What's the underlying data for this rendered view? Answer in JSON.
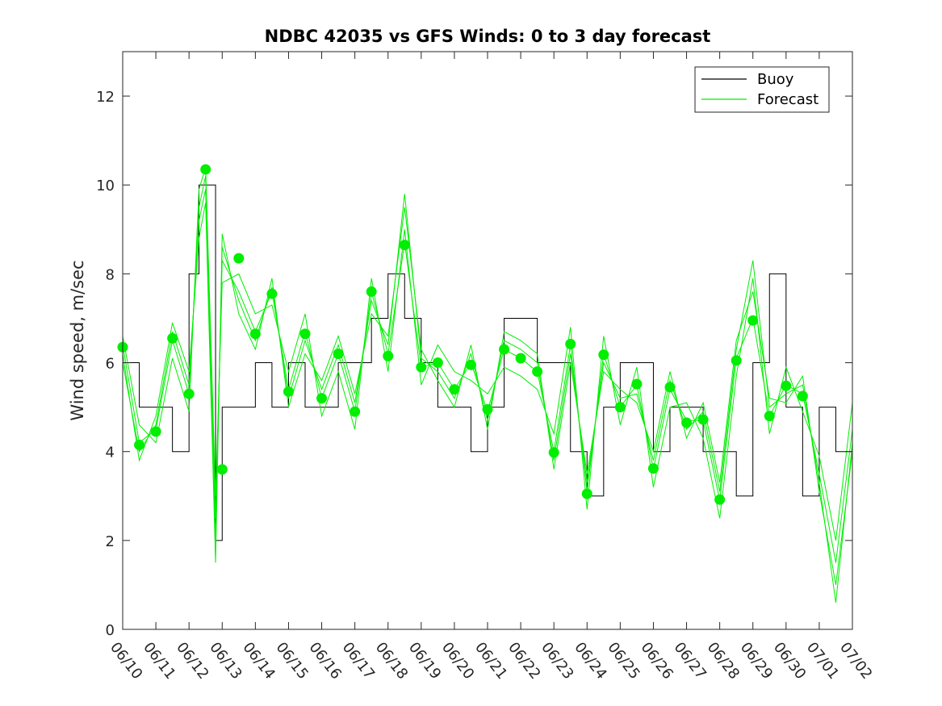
{
  "chart_data": {
    "type": "line",
    "title": "NDBC 42035 vs GFS Winds: 0 to 3 day forecast",
    "xlabel": "",
    "ylabel": "Wind speed, m/sec",
    "ylim": [
      0,
      13
    ],
    "yticks": [
      0,
      2,
      4,
      6,
      8,
      10,
      12
    ],
    "xlim": [
      0,
      22
    ],
    "xtick_labels": [
      "06/10",
      "06/11",
      "06/12",
      "06/13",
      "06/14",
      "06/15",
      "06/16",
      "06/17",
      "06/18",
      "06/19",
      "06/20",
      "06/21",
      "06/22",
      "06/23",
      "06/24",
      "06/25",
      "06/26",
      "06/27",
      "06/28",
      "06/29",
      "06/30",
      "07/01",
      "07/02"
    ],
    "grid": false,
    "legend": {
      "placement": "top-right",
      "entries": [
        "Buoy",
        "Forecast"
      ]
    },
    "colors": {
      "buoy": "#000000",
      "forecast": "#00ee00",
      "markers": "#00ee00"
    },
    "buoy": {
      "name": "Buoy",
      "x": [
        0,
        0.5,
        1,
        1.5,
        2,
        2.3,
        2.5,
        2.8,
        3,
        3.5,
        4,
        4.5,
        5,
        5.5,
        6,
        6.5,
        7,
        7.5,
        8,
        8.5,
        9,
        9.5,
        10,
        10.5,
        11,
        11.5,
        12,
        12.5,
        13,
        13.5,
        14,
        14.5,
        15,
        15.5,
        16,
        16.5,
        17,
        17.5,
        18,
        18.5,
        19,
        19.5,
        20,
        20.5,
        21,
        21.5,
        22
      ],
      "y": [
        6,
        5,
        5,
        4,
        8,
        10,
        10,
        2,
        5,
        5,
        6,
        5,
        6,
        5,
        5,
        6,
        6,
        7,
        8,
        7,
        6,
        5,
        5,
        4,
        5,
        7,
        7,
        6,
        6,
        4,
        3,
        5,
        6,
        6,
        4,
        5,
        5,
        4,
        4,
        3,
        6,
        8,
        5,
        3,
        5,
        4,
        4
      ]
    },
    "forecast_series": [
      {
        "x": [
          0,
          0.5,
          1,
          1.5,
          2,
          2.3,
          2.5,
          2.8,
          3,
          3.5,
          4,
          4.5,
          5,
          5.5,
          6,
          6.5,
          7,
          7.5,
          8,
          8.5,
          9,
          9.5,
          10,
          10.5,
          11,
          11.5,
          12,
          12.5,
          13,
          13.5,
          14,
          14.5,
          15,
          15.5,
          16,
          16.5,
          17,
          17.5,
          18,
          18.5,
          19,
          19.5,
          20,
          20.5,
          21,
          21.5,
          22
        ],
        "y": [
          6.4,
          4.2,
          4.5,
          6.5,
          5.3,
          9.5,
          10.2,
          2.5,
          8.3,
          7.6,
          6.7,
          7.6,
          5.4,
          6.7,
          5.2,
          6.2,
          4.9,
          7.6,
          6.2,
          8.7,
          5.9,
          6,
          5.4,
          6,
          4.9,
          6.3,
          6.1,
          5.8,
          4,
          6.4,
          3.1,
          6.2,
          5,
          5.5,
          3.6,
          5.4,
          4.7,
          4.7,
          2.9,
          6.1,
          7,
          4.8,
          5.5,
          5.3,
          3.5,
          1.5,
          4.5
        ]
      },
      {
        "x": [
          0,
          0.5,
          1,
          1.5,
          2,
          2.3,
          2.5,
          2.8,
          3,
          3.5,
          4,
          4.5,
          5,
          5.5,
          6,
          6.5,
          7,
          7.5,
          8,
          8.5,
          9,
          9.5,
          10,
          10.5,
          11,
          11.5,
          12,
          12.5,
          13,
          13.5,
          14,
          14.5,
          15,
          15.5,
          16,
          16.5,
          17,
          17.5,
          18,
          18.5,
          19,
          19.5,
          20,
          20.5,
          21,
          21.5,
          22
        ],
        "y": [
          6.2,
          3.8,
          4.8,
          6.9,
          5.8,
          8.8,
          9.6,
          1.5,
          8.9,
          7.1,
          6.3,
          7.9,
          5.0,
          6.2,
          5.6,
          6.6,
          5.3,
          7.1,
          6.6,
          9.5,
          6.3,
          5.6,
          5.0,
          6.4,
          4.5,
          6.7,
          6.5,
          6.2,
          3.6,
          6.0,
          3.5,
          5.8,
          5.4,
          5.1,
          4.0,
          5.8,
          4.3,
          5.1,
          3.3,
          6.5,
          7.6,
          5.2,
          5.1,
          5.7,
          3.1,
          1.0,
          4.0
        ]
      },
      {
        "x": [
          0,
          0.5,
          1,
          1.5,
          2,
          2.3,
          2.5,
          2.8,
          3,
          3.5,
          4,
          4.5,
          5,
          5.5,
          6,
          6.5,
          7,
          7.5,
          8,
          8.5,
          9,
          9.5,
          10,
          10.5,
          11,
          11.5,
          12,
          12.5,
          13,
          13.5,
          14,
          14.5,
          15,
          15.5,
          16,
          16.5,
          17,
          17.5,
          18,
          18.5,
          19,
          19.5,
          20,
          20.5,
          21,
          21.5,
          22
        ],
        "y": [
          6.6,
          4.6,
          4.2,
          6.1,
          4.9,
          9.9,
          10.4,
          3.0,
          7.8,
          8.0,
          7.1,
          7.3,
          5.8,
          7.1,
          4.8,
          5.8,
          4.5,
          7.9,
          5.8,
          9.0,
          5.5,
          6.4,
          5.8,
          5.6,
          5.3,
          5.9,
          5.7,
          5.4,
          4.4,
          6.8,
          2.7,
          6.6,
          4.6,
          5.9,
          3.2,
          5.0,
          5.1,
          4.3,
          2.5,
          5.7,
          7.9,
          4.4,
          5.9,
          4.9,
          3.9,
          2.0,
          5.1
        ]
      },
      {
        "x": [
          0,
          0.5,
          1,
          1.5,
          2,
          2.3,
          2.5,
          2.8,
          3,
          3.5,
          4,
          4.5,
          5,
          5.5,
          6,
          6.5,
          7,
          7.5,
          8,
          8.5,
          9,
          9.5,
          10,
          10.5,
          11,
          11.5,
          12,
          12.5,
          13,
          13.5,
          14,
          14.5,
          15,
          15.5,
          16,
          16.5,
          17,
          17.5,
          18,
          18.5,
          19,
          19.5,
          20,
          20.5,
          21,
          21.5,
          22
        ],
        "y": [
          6.0,
          4.0,
          4.6,
          6.7,
          5.5,
          9.2,
          9.9,
          2.0,
          8.6,
          7.4,
          6.5,
          7.7,
          5.2,
          6.5,
          5.4,
          6.4,
          5.1,
          7.4,
          6.4,
          9.8,
          6.1,
          5.8,
          5.2,
          6.2,
          4.7,
          6.5,
          6.3,
          6.0,
          3.8,
          6.2,
          3.3,
          6.0,
          5.2,
          5.3,
          3.8,
          5.6,
          4.5,
          4.9,
          3.1,
          6.3,
          8.3,
          5.0,
          5.3,
          5.5,
          3.3,
          0.6,
          4.2
        ]
      }
    ],
    "forecast_markers": {
      "x": [
        0,
        0.5,
        1,
        1.5,
        2,
        2.5,
        3,
        3.5,
        4,
        4.5,
        5,
        5.5,
        6,
        6.5,
        7,
        7.5,
        8,
        8.5,
        9,
        9.5,
        10,
        10.5,
        11,
        11.5,
        12,
        12.5,
        13,
        13.5,
        14,
        14.5,
        15,
        15.5,
        16,
        16.5,
        17,
        17.5,
        18,
        18.5,
        19,
        19.5,
        20,
        20.5,
        21
      ],
      "y": [
        6.35,
        4.15,
        4.45,
        6.55,
        5.3,
        10.35,
        3.6,
        8.35,
        6.65,
        7.55,
        5.35,
        6.65,
        5.2,
        6.2,
        4.9,
        7.6,
        6.15,
        8.65,
        5.9,
        6.0,
        5.4,
        5.95,
        4.95,
        6.3,
        6.1,
        5.8,
        3.98,
        6.42,
        3.05,
        6.18,
        5.0,
        5.52,
        3.62,
        5.45,
        4.65,
        4.72,
        2.92,
        6.05,
        6.95,
        4.8,
        5.48,
        5.25,
        null
      ]
    }
  }
}
